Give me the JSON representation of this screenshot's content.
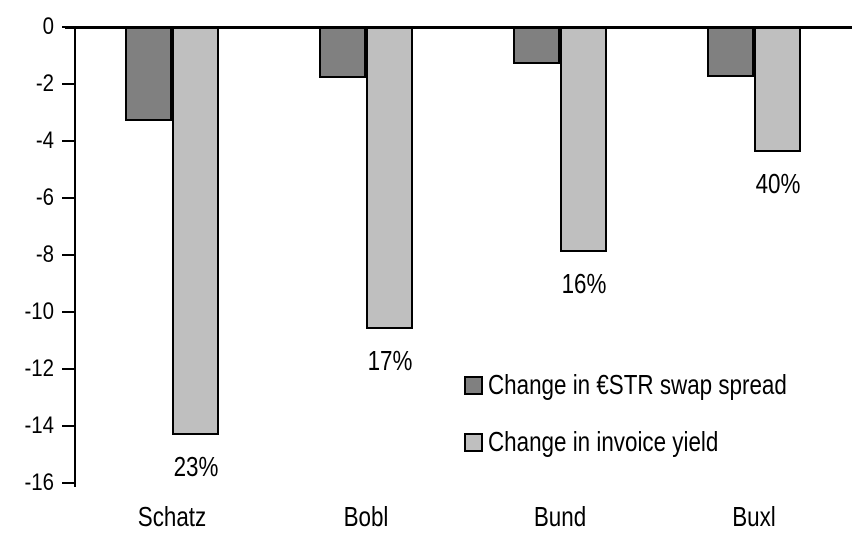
{
  "chart_data": {
    "type": "bar",
    "title": "",
    "xlabel": "",
    "ylabel": "",
    "categories": [
      "Schatz",
      "Bobl",
      "Bund",
      "Buxl"
    ],
    "series": [
      {
        "name": "Change in €STR swap spread",
        "color": "#808080",
        "values": [
          -3.3,
          -1.8,
          -1.3,
          -1.75
        ]
      },
      {
        "name": "Change in invoice yield",
        "color": "#BFBFBF",
        "values": [
          -14.3,
          -10.6,
          -7.9,
          -4.4
        ],
        "point_labels": [
          "23%",
          "17%",
          "16%",
          "40%"
        ]
      }
    ],
    "ylim": [
      -16,
      0
    ],
    "yticks": [
      0,
      -2,
      -4,
      -6,
      -8,
      -10,
      -12,
      -14,
      -16
    ],
    "ytick_labels": [
      "0",
      "-2",
      "-4",
      "-6",
      "-8",
      "-10",
      "-12",
      "-14",
      "-16"
    ],
    "grid": false,
    "legend_position": "inside-right",
    "axis_color": "#000000",
    "bar_outline_color": "#000000",
    "background_color": "#FFFFFF"
  }
}
